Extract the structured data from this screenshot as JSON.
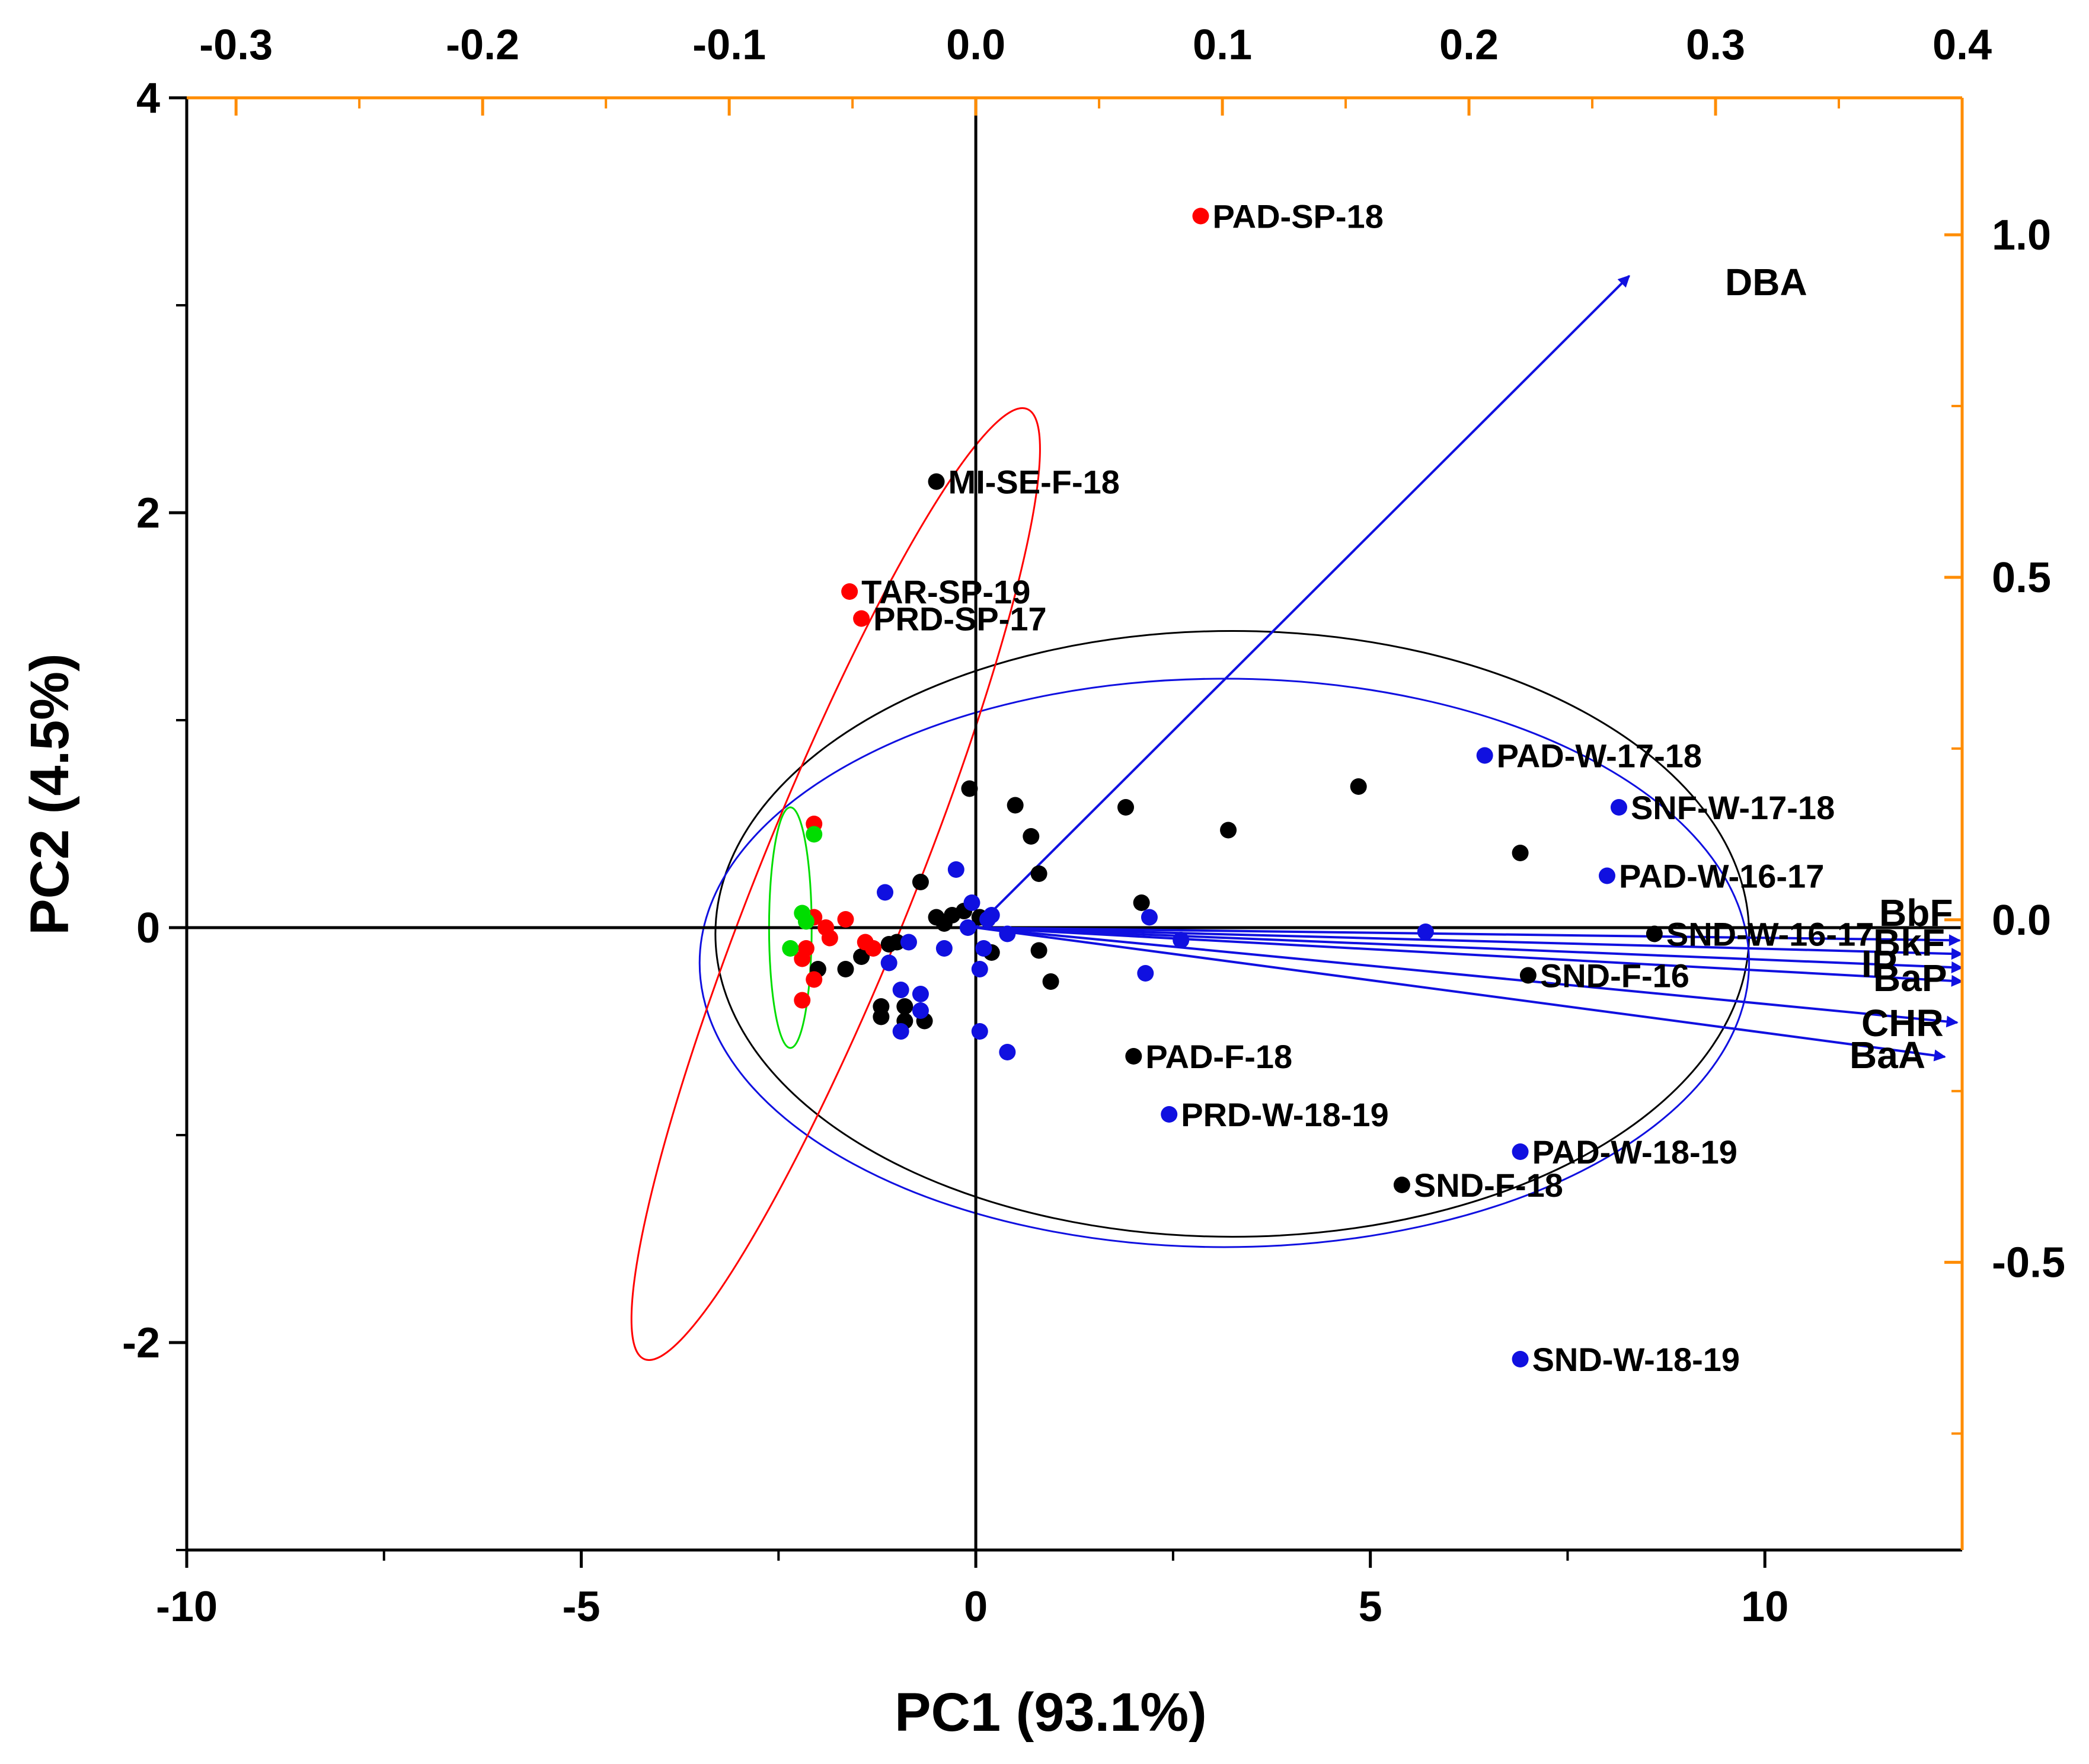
{
  "chart_data": {
    "type": "scatter",
    "subtype": "pca-biplot",
    "title": "",
    "xlabel": "PC1 (93.1%)",
    "ylabel": "PC2 (4.5%)",
    "xlim": [
      -10,
      12.5
    ],
    "ylim": [
      -3,
      4
    ],
    "x_ticks": [
      "-10",
      "-5",
      "0",
      "5",
      "10"
    ],
    "x_tick_values": [
      -10,
      -5,
      0,
      5,
      10
    ],
    "y_ticks": [
      "-2",
      "0",
      "2",
      "4"
    ],
    "y_tick_values": [
      -2,
      0,
      2,
      4
    ],
    "top_axis": {
      "range": [
        -0.32,
        0.4
      ],
      "color": "#FF8C00",
      "ticks": [
        "-0.3",
        "-0.2",
        "-0.1",
        "0.0",
        "0.1",
        "0.2",
        "0.3",
        "0.4"
      ],
      "tick_values": [
        -0.3,
        -0.2,
        -0.1,
        0.0,
        0.1,
        0.2,
        0.3,
        0.4
      ]
    },
    "right_axis": {
      "range": [
        -0.92,
        1.2
      ],
      "color": "#FF8C00",
      "ticks": [
        "1.0",
        "0.5",
        "0.0",
        "-0.5"
      ],
      "tick_values": [
        1.0,
        0.5,
        0.0,
        -0.5
      ]
    },
    "colors": {
      "black_group": "#000000",
      "blue_group": "#1010E0",
      "red_group": "#FF0000",
      "green_group": "#00DD00",
      "vectors": "#1010E0",
      "secondary_axes": "#FF8C00"
    },
    "series": [
      {
        "name": "black",
        "color": "#000000",
        "points": [
          {
            "x": -0.5,
            "y": 2.15,
            "label": "MI-SE-F-18"
          },
          {
            "x": 2.0,
            "y": -0.62,
            "label": "PAD-F-18"
          },
          {
            "x": 5.4,
            "y": -1.24,
            "label": "SND-F-18"
          },
          {
            "x": 8.6,
            "y": -0.03,
            "label": "SND-W-16-17"
          },
          {
            "x": 7.0,
            "y": -0.23,
            "label": "SND-F-16"
          },
          {
            "x": 6.9,
            "y": 0.36
          },
          {
            "x": 4.85,
            "y": 0.68
          },
          {
            "x": 3.2,
            "y": 0.47
          },
          {
            "x": 1.9,
            "y": 0.58
          },
          {
            "x": 2.1,
            "y": 0.12
          },
          {
            "x": 0.5,
            "y": 0.59
          },
          {
            "x": 0.7,
            "y": 0.44
          },
          {
            "x": 0.8,
            "y": 0.26
          },
          {
            "x": -0.08,
            "y": 0.67
          },
          {
            "x": -0.7,
            "y": 0.22
          },
          {
            "x": 0.8,
            "y": -0.11
          },
          {
            "x": 0.95,
            "y": -0.26
          },
          {
            "x": 0.2,
            "y": -0.12
          },
          {
            "x": 0.05,
            "y": 0.05
          },
          {
            "x": -0.3,
            "y": 0.06
          },
          {
            "x": -0.5,
            "y": 0.05
          },
          {
            "x": -0.4,
            "y": 0.02
          },
          {
            "x": -0.15,
            "y": 0.08
          },
          {
            "x": -1.1,
            "y": -0.08
          },
          {
            "x": -1.45,
            "y": -0.14
          },
          {
            "x": -1.65,
            "y": -0.2
          },
          {
            "x": -2.0,
            "y": -0.2
          },
          {
            "x": -1.2,
            "y": -0.38
          },
          {
            "x": -1.2,
            "y": -0.43
          },
          {
            "x": -0.9,
            "y": -0.38
          },
          {
            "x": -0.65,
            "y": -0.45
          },
          {
            "x": -0.9,
            "y": -0.45
          },
          {
            "x": -1.0,
            "y": -0.07
          }
        ]
      },
      {
        "name": "blue",
        "color": "#1010E0",
        "points": [
          {
            "x": 6.45,
            "y": 0.83,
            "label": "PAD-W-17-18"
          },
          {
            "x": 8.15,
            "y": 0.58,
            "label": "SNF-W-17-18"
          },
          {
            "x": 8.0,
            "y": 0.25,
            "label": "PAD-W-16-17"
          },
          {
            "x": 2.45,
            "y": -0.9,
            "label": "PRD-W-18-19"
          },
          {
            "x": 6.9,
            "y": -1.08,
            "label": "PAD-W-18-19"
          },
          {
            "x": 6.9,
            "y": -2.08,
            "label": "SND-W-18-19"
          },
          {
            "x": 5.7,
            "y": -0.02
          },
          {
            "x": 2.6,
            "y": -0.06
          },
          {
            "x": 2.2,
            "y": 0.05
          },
          {
            "x": 2.15,
            "y": -0.22
          },
          {
            "x": 0.4,
            "y": -0.6
          },
          {
            "x": 0.05,
            "y": -0.5
          },
          {
            "x": 0.05,
            "y": -0.2
          },
          {
            "x": 0.1,
            "y": -0.1
          },
          {
            "x": 0.2,
            "y": 0.06
          },
          {
            "x": 0.15,
            "y": 0.04
          },
          {
            "x": 0.4,
            "y": -0.03
          },
          {
            "x": -0.05,
            "y": 0.12
          },
          {
            "x": -0.1,
            "y": 0.0
          },
          {
            "x": -0.25,
            "y": 0.28
          },
          {
            "x": -0.4,
            "y": -0.1
          },
          {
            "x": -0.85,
            "y": -0.07
          },
          {
            "x": -1.15,
            "y": 0.17
          },
          {
            "x": -1.1,
            "y": -0.17
          },
          {
            "x": -0.95,
            "y": -0.3
          },
          {
            "x": -0.7,
            "y": -0.32
          },
          {
            "x": -0.7,
            "y": -0.4
          },
          {
            "x": -0.95,
            "y": -0.5
          }
        ]
      },
      {
        "name": "red",
        "color": "#FF0000",
        "points": [
          {
            "x": 2.85,
            "y": 3.43,
            "label": "PAD-SP-18"
          },
          {
            "x": -1.6,
            "y": 1.62,
            "label": "TAR-SP-19"
          },
          {
            "x": -1.45,
            "y": 1.49,
            "label": "PRD-SP-17"
          },
          {
            "x": -2.05,
            "y": 0.5
          },
          {
            "x": -2.05,
            "y": 0.05
          },
          {
            "x": -1.9,
            "y": 0.0
          },
          {
            "x": -1.65,
            "y": 0.04
          },
          {
            "x": -1.4,
            "y": -0.07
          },
          {
            "x": -1.3,
            "y": -0.1
          },
          {
            "x": -1.85,
            "y": -0.05
          },
          {
            "x": -2.15,
            "y": -0.1
          },
          {
            "x": -2.2,
            "y": -0.15
          },
          {
            "x": -2.05,
            "y": -0.25
          },
          {
            "x": -2.2,
            "y": -0.35
          }
        ]
      },
      {
        "name": "green",
        "color": "#00DD00",
        "points": [
          {
            "x": -2.05,
            "y": 0.45
          },
          {
            "x": -2.2,
            "y": 0.07
          },
          {
            "x": -2.15,
            "y": 0.03
          },
          {
            "x": -2.35,
            "y": -0.1
          }
        ]
      }
    ],
    "ellipses": [
      {
        "group": "black",
        "color": "#000000",
        "cx": 3.25,
        "cy": -0.03,
        "rx": 6.55,
        "ry": 1.46,
        "angle_deg": 0
      },
      {
        "group": "blue",
        "color": "#1010E0",
        "cx": 3.15,
        "cy": -0.17,
        "rx": 6.65,
        "ry": 1.37,
        "angle_deg": 0
      },
      {
        "group": "red",
        "color": "#FF0000",
        "from": [
          -4.2,
          -2.08
        ],
        "to": [
          0.65,
          2.5
        ],
        "rx": 2.45,
        "ry": 0.85
      },
      {
        "group": "green",
        "color": "#00DD00",
        "cx": -2.35,
        "cy": 0.0,
        "rx": 0.27,
        "ry": 0.58,
        "angle_deg": 0
      }
    ],
    "vectors": [
      {
        "label": "DBA",
        "x": 0.265,
        "y": 0.94
      },
      {
        "label": "BbF",
        "x": 0.399,
        "y": -0.03
      },
      {
        "label": "BkF",
        "x": 0.4,
        "y": -0.05
      },
      {
        "label": "BaP",
        "x": 0.4,
        "y": -0.07
      },
      {
        "label": "IP",
        "x": 0.4,
        "y": -0.09
      },
      {
        "label": "CHR",
        "x": 0.398,
        "y": -0.15
      },
      {
        "label": "BaA",
        "x": 0.393,
        "y": -0.2
      }
    ],
    "vector_labels_text": {
      "DBA": "DBA",
      "BbF": "BbF",
      "BkF": "BkF",
      "BaP": "BaP",
      "IP": "IP",
      "CHR": "CHR",
      "BaA": "BaA"
    },
    "legend": "none",
    "grid": false
  }
}
